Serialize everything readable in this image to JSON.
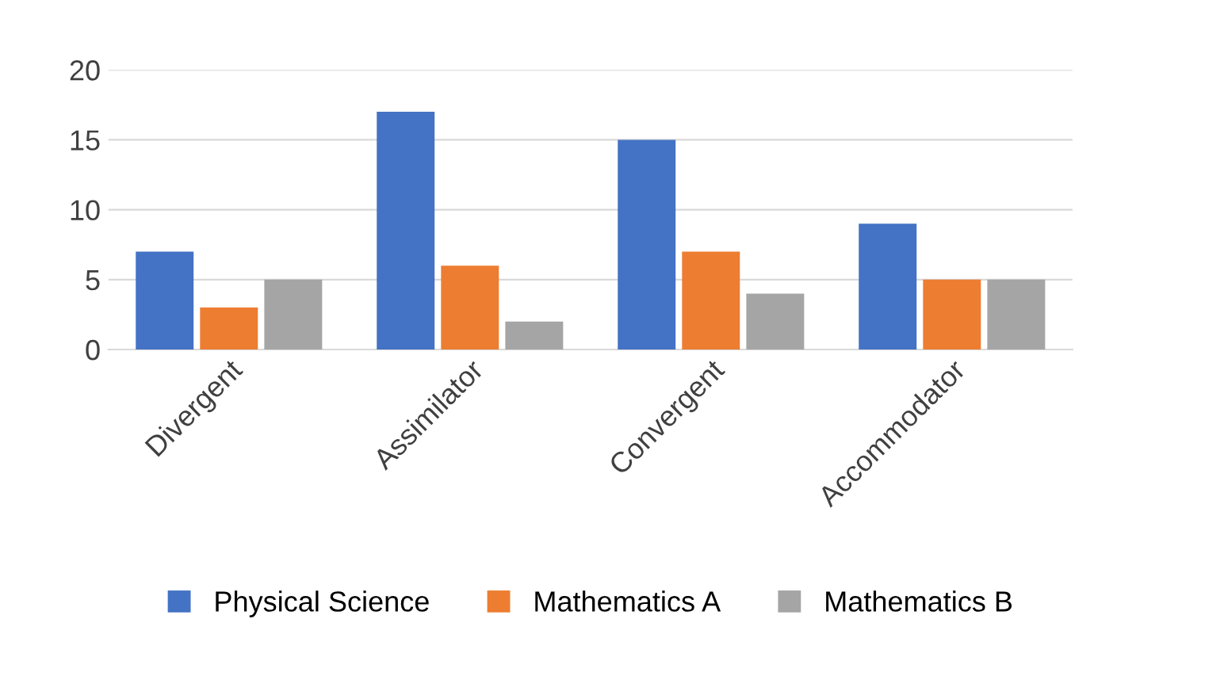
{
  "chart_data": {
    "type": "bar",
    "categories": [
      "Divergent",
      "Assimilator",
      "Convergent",
      "Accommodator"
    ],
    "series": [
      {
        "name": "Physical Science",
        "color": "#4472c4",
        "values": [
          7,
          17,
          15,
          9
        ]
      },
      {
        "name": "Mathematics A",
        "color": "#ed7d31",
        "values": [
          3,
          6,
          7,
          5
        ]
      },
      {
        "name": "Mathematics B",
        "color": "#a5a5a5",
        "values": [
          5,
          2,
          4,
          5
        ]
      }
    ],
    "ylim": [
      0,
      20
    ],
    "yticks": [
      0,
      5,
      10,
      15,
      20
    ],
    "grid": "y",
    "legend": "bottom"
  }
}
